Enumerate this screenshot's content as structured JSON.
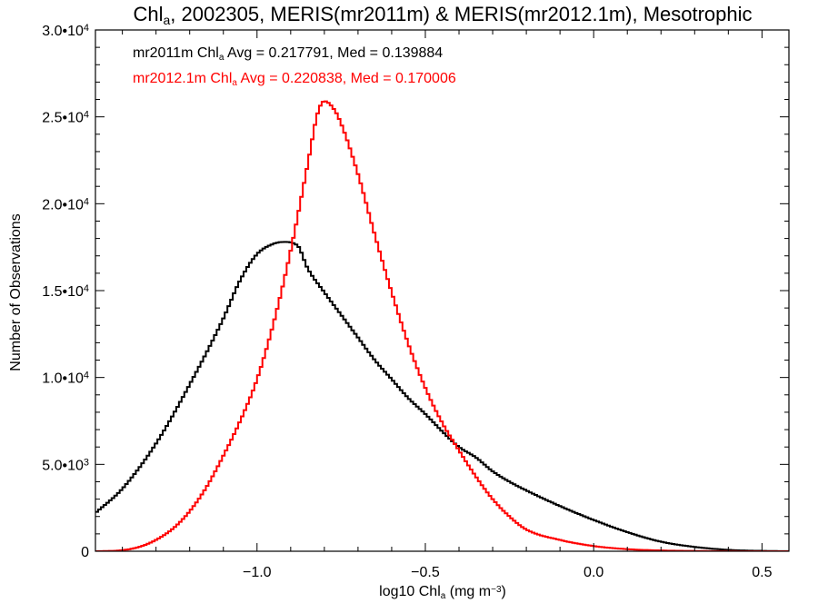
{
  "chart_data": {
    "type": "line",
    "title": {
      "parts": [
        {
          "text": "Chl"
        },
        {
          "text": "a",
          "sub": true
        },
        {
          "text": ", 2002305, MERIS(mr2011m) & MERIS(mr2012.1m), Mesotrophic"
        }
      ]
    },
    "xlabel": {
      "parts": [
        {
          "text": "log10 Chl"
        },
        {
          "text": "a",
          "sub": true
        },
        {
          "text": " (mg m"
        },
        {
          "text": "−3",
          "sup": true
        },
        {
          "text": ")"
        }
      ]
    },
    "ylabel": "Number of Observations",
    "xlim": [
      -1.48,
      0.58
    ],
    "ylim": [
      0,
      30000
    ],
    "grid": false,
    "step": true,
    "x_ticks": [
      {
        "value": -1.0,
        "label": "−1.0"
      },
      {
        "value": -0.5,
        "label": "−0.5"
      },
      {
        "value": 0.0,
        "label": "0.0"
      },
      {
        "value": 0.5,
        "label": "0.5"
      }
    ],
    "y_ticks": [
      {
        "value": 0,
        "mantissa": "0",
        "exp": ""
      },
      {
        "value": 5000,
        "mantissa": "5.0•10",
        "exp": "3"
      },
      {
        "value": 10000,
        "mantissa": "1.0•10",
        "exp": "4"
      },
      {
        "value": 15000,
        "mantissa": "1.5•10",
        "exp": "4"
      },
      {
        "value": 20000,
        "mantissa": "2.0•10",
        "exp": "4"
      },
      {
        "value": 25000,
        "mantissa": "2.5•10",
        "exp": "4"
      },
      {
        "value": 30000,
        "mantissa": "3.0•10",
        "exp": "4"
      }
    ],
    "annotations": [
      {
        "series": "mr2011m",
        "parts": [
          {
            "text": "mr2011m Chl"
          },
          {
            "text": "a",
            "sub": true
          },
          {
            "text": " Avg = 0.217791, Med = 0.139884"
          }
        ]
      },
      {
        "series": "mr2012.1m",
        "parts": [
          {
            "text": "mr2012.1m Chl"
          },
          {
            "text": "a",
            "sub": true
          },
          {
            "text": " Avg = 0.220838, Med = 0.170006"
          }
        ]
      }
    ],
    "series": [
      {
        "id": "mr2011m",
        "color": "#000000",
        "x": [
          -1.48,
          -1.4,
          -1.3,
          -1.2,
          -1.1,
          -1.05,
          -1.0,
          -0.95,
          -0.92,
          -0.88,
          -0.85,
          -0.8,
          -0.75,
          -0.7,
          -0.65,
          -0.6,
          -0.55,
          -0.5,
          -0.45,
          -0.4,
          -0.35,
          -0.3,
          -0.25,
          -0.2,
          -0.1,
          0.0,
          0.1,
          0.2,
          0.3,
          0.4,
          0.5,
          0.58
        ],
        "y": [
          2200,
          3600,
          6200,
          9600,
          13400,
          15600,
          17100,
          17700,
          17800,
          17600,
          16300,
          14900,
          13600,
          12300,
          11000,
          9900,
          8800,
          7900,
          6900,
          6000,
          5400,
          4600,
          4000,
          3500,
          2600,
          1800,
          1100,
          550,
          250,
          80,
          20,
          5
        ]
      },
      {
        "id": "mr2012.1m",
        "color": "#ff0000",
        "x": [
          -1.48,
          -1.4,
          -1.35,
          -1.3,
          -1.25,
          -1.2,
          -1.15,
          -1.1,
          -1.05,
          -1.0,
          -0.95,
          -0.9,
          -0.85,
          -0.82,
          -0.8,
          -0.77,
          -0.75,
          -0.7,
          -0.65,
          -0.6,
          -0.55,
          -0.5,
          -0.45,
          -0.4,
          -0.35,
          -0.3,
          -0.25,
          -0.2,
          -0.1,
          0.0,
          0.1,
          0.2,
          0.3,
          0.4,
          0.5,
          0.58
        ],
        "y": [
          0,
          60,
          250,
          650,
          1300,
          2300,
          3700,
          5500,
          7500,
          9900,
          13200,
          17300,
          22200,
          25200,
          25900,
          25400,
          24600,
          21700,
          18200,
          14900,
          11900,
          9400,
          7400,
          5800,
          4300,
          3000,
          2000,
          1250,
          650,
          300,
          120,
          45,
          15,
          5,
          0,
          0
        ]
      }
    ]
  }
}
